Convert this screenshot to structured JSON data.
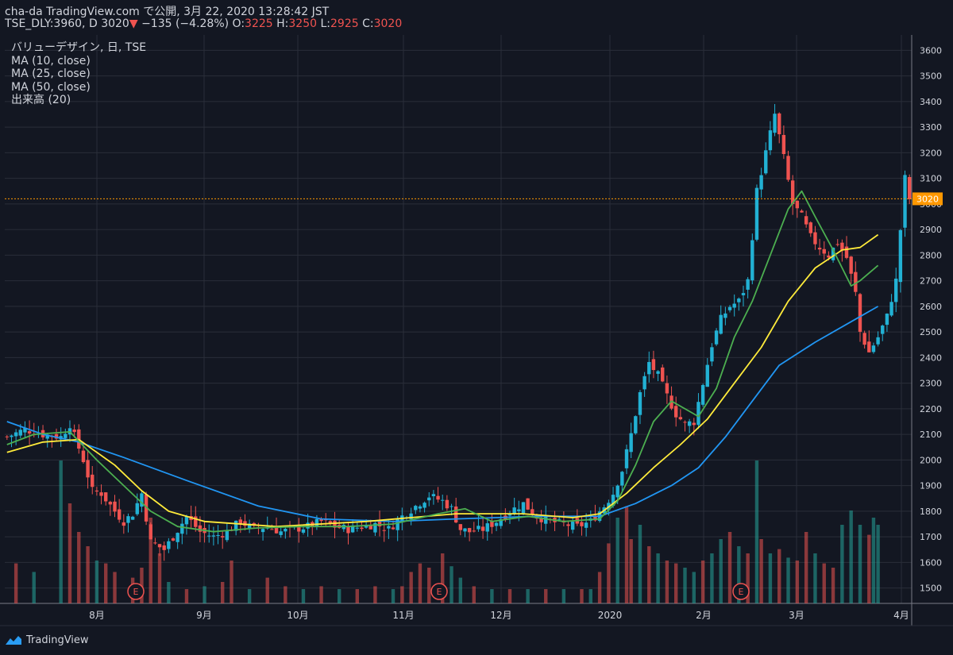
{
  "header": {
    "publisher_line": "cha-da TradingView.com で公開, 3月 22, 2020 13:28:42 JST",
    "symbol": "TSE_DLY:3960, D",
    "last": "3020",
    "change_arrow": "▼",
    "change": "−135 (−4.28%)",
    "o_label": "O:",
    "o_value": "3225",
    "h_label": "H:",
    "h_value": "3250",
    "l_label": "L:",
    "l_value": "2925",
    "c_label": "C:",
    "c_value": "3020"
  },
  "legend": {
    "title": "バリューデザイン, 日, TSE",
    "ma10": "MA (10, close)",
    "ma25": "MA (25, close)",
    "ma50": "MA (50, close)",
    "volume": "出来高 (20)"
  },
  "footer": {
    "brand": "TradingView"
  },
  "colors": {
    "background": "#131722",
    "grid": "#2a2e39",
    "up": "#26a69a",
    "down": "#ef5350",
    "up_candle": "#22b1d4",
    "down_candle": "#ef5350",
    "ma10": "#4caf50",
    "ma25": "#ffeb3b",
    "ma50": "#2196f3",
    "price_line": "#ff9800",
    "price_label_bg": "#ff9800"
  },
  "chart_data": {
    "type": "candlestick",
    "y_ticks": [
      1500,
      1600,
      1700,
      1800,
      1900,
      2000,
      2100,
      2200,
      2300,
      2400,
      2500,
      2600,
      2700,
      2800,
      2900,
      3000,
      3100,
      3200,
      3300,
      3400,
      3500,
      3600
    ],
    "ylim": [
      1440,
      3660
    ],
    "x_ticks": [
      "8月",
      "9月",
      "10月",
      "11月",
      "12月",
      "2020",
      "2月",
      "3月",
      "4月"
    ],
    "last_price_label": "3020",
    "earnings_markers": [
      "E",
      "E",
      "E"
    ],
    "close_path": [
      [
        0,
        2090
      ],
      [
        4,
        2120
      ],
      [
        8,
        2100
      ],
      [
        12,
        2090
      ],
      [
        14,
        2140
      ],
      [
        17,
        2000
      ],
      [
        19,
        1880
      ],
      [
        21,
        1870
      ],
      [
        24,
        1800
      ],
      [
        26,
        1760
      ],
      [
        28,
        1790
      ],
      [
        30,
        1870
      ],
      [
        32,
        1680
      ],
      [
        35,
        1650
      ],
      [
        37,
        1700
      ],
      [
        40,
        1780
      ],
      [
        43,
        1720
      ],
      [
        46,
        1700
      ],
      [
        49,
        1720
      ],
      [
        52,
        1760
      ],
      [
        55,
        1730
      ],
      [
        58,
        1740
      ],
      [
        61,
        1720
      ],
      [
        64,
        1730
      ],
      [
        67,
        1740
      ],
      [
        70,
        1760
      ],
      [
        73,
        1740
      ],
      [
        76,
        1730
      ],
      [
        79,
        1740
      ],
      [
        82,
        1750
      ],
      [
        85,
        1730
      ],
      [
        88,
        1780
      ],
      [
        91,
        1820
      ],
      [
        94,
        1860
      ],
      [
        97,
        1840
      ],
      [
        99,
        1810
      ],
      [
        101,
        1730
      ],
      [
        103,
        1720
      ],
      [
        106,
        1730
      ],
      [
        109,
        1760
      ],
      [
        112,
        1800
      ],
      [
        115,
        1830
      ],
      [
        118,
        1780
      ],
      [
        121,
        1760
      ],
      [
        124,
        1750
      ],
      [
        127,
        1740
      ],
      [
        130,
        1760
      ],
      [
        133,
        1820
      ],
      [
        135,
        1870
      ],
      [
        137,
        1960
      ],
      [
        139,
        2100
      ],
      [
        141,
        2260
      ],
      [
        143,
        2380
      ],
      [
        145,
        2330
      ],
      [
        147,
        2250
      ],
      [
        149,
        2180
      ],
      [
        151,
        2140
      ],
      [
        153,
        2150
      ],
      [
        155,
        2300
      ],
      [
        157,
        2450
      ],
      [
        159,
        2550
      ],
      [
        161,
        2600
      ],
      [
        163,
        2620
      ],
      [
        165,
        2700
      ],
      [
        167,
        3050
      ],
      [
        169,
        3200
      ],
      [
        171,
        3350
      ],
      [
        173,
        3180
      ],
      [
        175,
        3000
      ],
      [
        177,
        2950
      ],
      [
        179,
        2870
      ],
      [
        181,
        2830
      ],
      [
        183,
        2800
      ],
      [
        185,
        2850
      ],
      [
        187,
        2790
      ],
      [
        189,
        2650
      ],
      [
        190,
        2500
      ],
      [
        192,
        2420
      ],
      [
        194,
        2480
      ],
      [
        196,
        2560
      ],
      [
        198,
        2700
      ],
      [
        200,
        3100
      ],
      [
        201,
        3020
      ]
    ],
    "ma10": [
      [
        0,
        2060
      ],
      [
        6,
        2100
      ],
      [
        14,
        2110
      ],
      [
        20,
        2000
      ],
      [
        26,
        1900
      ],
      [
        32,
        1800
      ],
      [
        38,
        1740
      ],
      [
        46,
        1720
      ],
      [
        56,
        1735
      ],
      [
        66,
        1740
      ],
      [
        76,
        1740
      ],
      [
        86,
        1750
      ],
      [
        96,
        1790
      ],
      [
        102,
        1810
      ],
      [
        108,
        1760
      ],
      [
        116,
        1780
      ],
      [
        124,
        1760
      ],
      [
        132,
        1770
      ],
      [
        136,
        1840
      ],
      [
        140,
        1980
      ],
      [
        144,
        2150
      ],
      [
        148,
        2230
      ],
      [
        152,
        2190
      ],
      [
        154,
        2170
      ],
      [
        158,
        2280
      ],
      [
        162,
        2480
      ],
      [
        166,
        2620
      ],
      [
        170,
        2800
      ],
      [
        174,
        2980
      ],
      [
        177,
        3050
      ],
      [
        180,
        2950
      ],
      [
        184,
        2820
      ],
      [
        188,
        2680
      ],
      [
        190,
        2700
      ],
      [
        194,
        2760
      ]
    ],
    "ma25": [
      [
        0,
        2030
      ],
      [
        8,
        2070
      ],
      [
        16,
        2080
      ],
      [
        24,
        1980
      ],
      [
        30,
        1880
      ],
      [
        36,
        1800
      ],
      [
        44,
        1760
      ],
      [
        60,
        1740
      ],
      [
        80,
        1760
      ],
      [
        100,
        1790
      ],
      [
        115,
        1790
      ],
      [
        126,
        1775
      ],
      [
        132,
        1790
      ],
      [
        138,
        1870
      ],
      [
        144,
        1970
      ],
      [
        150,
        2060
      ],
      [
        156,
        2160
      ],
      [
        162,
        2300
      ],
      [
        168,
        2440
      ],
      [
        174,
        2620
      ],
      [
        180,
        2750
      ],
      [
        186,
        2820
      ],
      [
        190,
        2830
      ],
      [
        194,
        2880
      ]
    ],
    "ma50": [
      [
        0,
        2150
      ],
      [
        8,
        2100
      ],
      [
        16,
        2070
      ],
      [
        26,
        2010
      ],
      [
        40,
        1920
      ],
      [
        56,
        1820
      ],
      [
        70,
        1770
      ],
      [
        86,
        1760
      ],
      [
        100,
        1770
      ],
      [
        118,
        1780
      ],
      [
        132,
        1780
      ],
      [
        140,
        1830
      ],
      [
        148,
        1900
      ],
      [
        154,
        1970
      ],
      [
        160,
        2090
      ],
      [
        166,
        2230
      ],
      [
        172,
        2370
      ],
      [
        180,
        2460
      ],
      [
        188,
        2540
      ],
      [
        194,
        2600
      ]
    ],
    "volume": [
      [
        2,
        "d",
        0.28
      ],
      [
        6,
        "u",
        0.22
      ],
      [
        12,
        "u",
        1.0
      ],
      [
        14,
        "d",
        0.7
      ],
      [
        16,
        "d",
        0.5
      ],
      [
        18,
        "d",
        0.4
      ],
      [
        20,
        "u",
        0.3
      ],
      [
        22,
        "d",
        0.28
      ],
      [
        24,
        "d",
        0.22
      ],
      [
        28,
        "d",
        0.18
      ],
      [
        30,
        "d",
        0.25
      ],
      [
        32,
        "d",
        0.6
      ],
      [
        34,
        "d",
        0.35
      ],
      [
        36,
        "u",
        0.15
      ],
      [
        40,
        "d",
        0.1
      ],
      [
        44,
        "u",
        0.12
      ],
      [
        48,
        "d",
        0.15
      ],
      [
        50,
        "d",
        0.3
      ],
      [
        54,
        "u",
        0.1
      ],
      [
        58,
        "d",
        0.18
      ],
      [
        62,
        "d",
        0.12
      ],
      [
        66,
        "u",
        0.1
      ],
      [
        70,
        "d",
        0.12
      ],
      [
        74,
        "u",
        0.1
      ],
      [
        78,
        "d",
        0.1
      ],
      [
        82,
        "d",
        0.12
      ],
      [
        86,
        "u",
        0.1
      ],
      [
        88,
        "d",
        0.12
      ],
      [
        90,
        "d",
        0.22
      ],
      [
        92,
        "d",
        0.28
      ],
      [
        94,
        "d",
        0.25
      ],
      [
        97,
        "d",
        0.35
      ],
      [
        99,
        "u",
        0.26
      ],
      [
        101,
        "u",
        0.18
      ],
      [
        104,
        "d",
        0.12
      ],
      [
        108,
        "u",
        0.1
      ],
      [
        112,
        "d",
        0.1
      ],
      [
        116,
        "u",
        0.1
      ],
      [
        120,
        "d",
        0.1
      ],
      [
        124,
        "u",
        0.1
      ],
      [
        128,
        "d",
        0.1
      ],
      [
        130,
        "u",
        0.1
      ],
      [
        132,
        "d",
        0.22
      ],
      [
        134,
        "d",
        0.42
      ],
      [
        136,
        "u",
        0.6
      ],
      [
        138,
        "d",
        0.68
      ],
      [
        139,
        "d",
        0.45
      ],
      [
        141,
        "u",
        0.55
      ],
      [
        143,
        "d",
        0.4
      ],
      [
        145,
        "u",
        0.35
      ],
      [
        147,
        "d",
        0.3
      ],
      [
        149,
        "d",
        0.28
      ],
      [
        151,
        "u",
        0.25
      ],
      [
        153,
        "u",
        0.22
      ],
      [
        155,
        "d",
        0.3
      ],
      [
        157,
        "u",
        0.35
      ],
      [
        159,
        "u",
        0.45
      ],
      [
        161,
        "d",
        0.5
      ],
      [
        163,
        "u",
        0.4
      ],
      [
        165,
        "d",
        0.35
      ],
      [
        167,
        "u",
        1.0
      ],
      [
        168,
        "d",
        0.45
      ],
      [
        170,
        "u",
        0.35
      ],
      [
        172,
        "d",
        0.38
      ],
      [
        174,
        "u",
        0.32
      ],
      [
        176,
        "d",
        0.3
      ],
      [
        178,
        "d",
        0.5
      ],
      [
        180,
        "u",
        0.35
      ],
      [
        182,
        "d",
        0.28
      ],
      [
        184,
        "d",
        0.25
      ],
      [
        186,
        "u",
        0.55
      ],
      [
        188,
        "u",
        0.65
      ],
      [
        190,
        "u",
        0.55
      ],
      [
        192,
        "d",
        0.48
      ],
      [
        193,
        "u",
        0.6
      ],
      [
        194,
        "u",
        0.55
      ]
    ]
  }
}
